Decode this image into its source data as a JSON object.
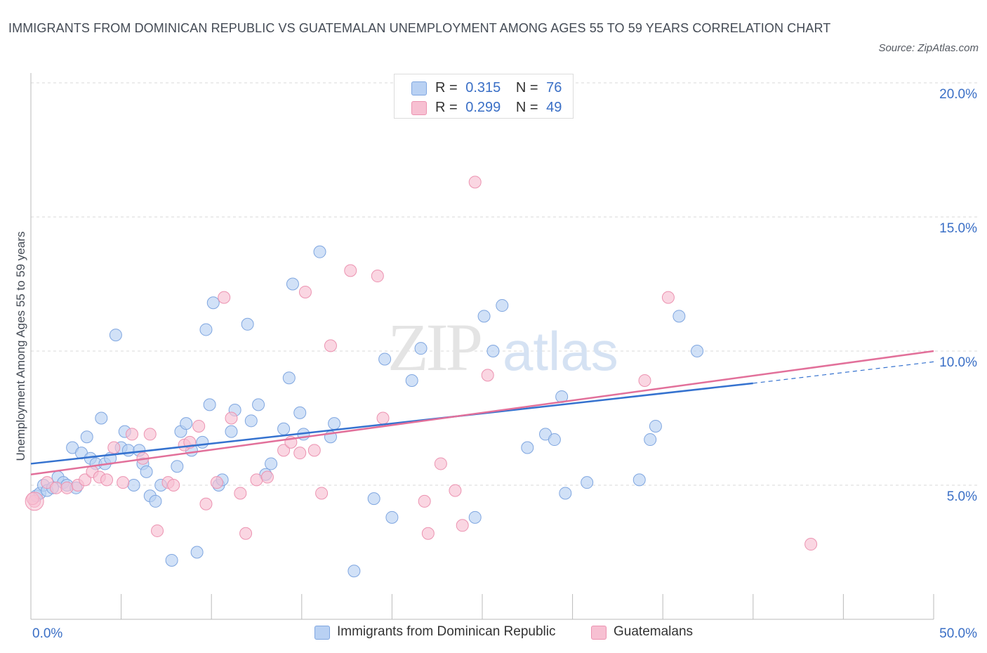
{
  "title": "IMMIGRANTS FROM DOMINICAN REPUBLIC VS GUATEMALAN UNEMPLOYMENT AMONG AGES 55 TO 59 YEARS CORRELATION CHART",
  "source": "Source: ZipAtlas.com",
  "watermark": {
    "zip": "ZIP",
    "atlas": "atlas"
  },
  "legend": {
    "rows": [
      {
        "r_label": "R =",
        "r_value": "0.315",
        "n_label": "N =",
        "n_value": "76"
      },
      {
        "r_label": "R =",
        "r_value": "0.299",
        "n_label": "N =",
        "n_value": "49"
      }
    ]
  },
  "bottom_legend": {
    "series1": "Immigrants from Dominican Republic",
    "series2": "Guatemalans"
  },
  "colors": {
    "blue_fill": "#b9d1f3",
    "blue_stroke": "#7fa6e0",
    "blue_line": "#3572cf",
    "pink_fill": "#f7c0d2",
    "pink_stroke": "#ec93b1",
    "pink_line": "#e2709a",
    "axis_text": "#3a6fc6",
    "grid": "#d9d9d9"
  },
  "chart_data": {
    "type": "scatter",
    "title": "IMMIGRANTS FROM DOMINICAN REPUBLIC VS GUATEMALAN UNEMPLOYMENT AMONG AGES 55 TO 59 YEARS CORRELATION CHART",
    "xlabel": "",
    "ylabel": "Unemployment Among Ages 55 to 59 years",
    "xlim": [
      0,
      50
    ],
    "ylim": [
      0,
      20
    ],
    "x_tick_labels": [
      "0.0%",
      "50.0%"
    ],
    "y_tick_labels": [
      "5.0%",
      "10.0%",
      "15.0%",
      "20.0%"
    ],
    "y_tick_values": [
      5,
      10,
      15,
      20
    ],
    "x_tick_values": [
      0,
      5,
      10,
      15,
      20,
      25,
      30,
      35,
      40,
      45,
      50
    ],
    "series": [
      {
        "name": "Immigrants from Dominican Republic",
        "R": 0.315,
        "N": 76,
        "trend": {
          "x0": 0,
          "y0": 5.8,
          "x1": 40,
          "y1": 8.8,
          "dashed_to": 50,
          "dashed_y": 9.6
        },
        "points": [
          [
            0.3,
            4.6
          ],
          [
            0.5,
            4.7
          ],
          [
            0.7,
            5.0
          ],
          [
            0.9,
            4.8
          ],
          [
            1.2,
            4.9
          ],
          [
            1.5,
            5.3
          ],
          [
            1.8,
            5.1
          ],
          [
            2.0,
            5.0
          ],
          [
            2.5,
            4.9
          ],
          [
            2.3,
            6.4
          ],
          [
            2.8,
            6.2
          ],
          [
            3.1,
            6.8
          ],
          [
            3.3,
            6.0
          ],
          [
            3.6,
            5.8
          ],
          [
            3.9,
            7.5
          ],
          [
            4.1,
            5.8
          ],
          [
            4.4,
            6.0
          ],
          [
            4.7,
            10.6
          ],
          [
            5.0,
            6.4
          ],
          [
            5.2,
            7.0
          ],
          [
            5.4,
            6.3
          ],
          [
            5.7,
            5.0
          ],
          [
            6.0,
            6.3
          ],
          [
            6.2,
            5.8
          ],
          [
            6.4,
            5.5
          ],
          [
            6.6,
            4.6
          ],
          [
            6.9,
            4.4
          ],
          [
            7.2,
            5.0
          ],
          [
            7.8,
            2.2
          ],
          [
            8.1,
            5.7
          ],
          [
            8.3,
            7.0
          ],
          [
            8.6,
            7.3
          ],
          [
            8.9,
            6.3
          ],
          [
            9.2,
            2.5
          ],
          [
            9.5,
            6.6
          ],
          [
            9.7,
            10.8
          ],
          [
            9.9,
            8.0
          ],
          [
            10.1,
            11.8
          ],
          [
            10.4,
            5.0
          ],
          [
            10.6,
            5.2
          ],
          [
            11.1,
            7.0
          ],
          [
            11.3,
            7.8
          ],
          [
            12.0,
            11.0
          ],
          [
            12.2,
            7.4
          ],
          [
            12.6,
            8.0
          ],
          [
            13.0,
            5.4
          ],
          [
            13.3,
            5.8
          ],
          [
            14.0,
            7.1
          ],
          [
            14.3,
            9.0
          ],
          [
            14.5,
            12.5
          ],
          [
            14.9,
            7.7
          ],
          [
            15.1,
            6.9
          ],
          [
            16.0,
            13.7
          ],
          [
            16.6,
            6.8
          ],
          [
            16.8,
            7.3
          ],
          [
            17.9,
            1.8
          ],
          [
            19.0,
            4.5
          ],
          [
            19.6,
            9.7
          ],
          [
            20.0,
            3.8
          ],
          [
            21.1,
            8.9
          ],
          [
            21.6,
            10.1
          ],
          [
            24.6,
            3.8
          ],
          [
            25.1,
            11.3
          ],
          [
            25.6,
            10.0
          ],
          [
            26.1,
            11.7
          ],
          [
            27.5,
            6.4
          ],
          [
            28.5,
            6.9
          ],
          [
            29.0,
            6.7
          ],
          [
            29.4,
            8.3
          ],
          [
            29.6,
            4.7
          ],
          [
            30.8,
            5.1
          ],
          [
            33.7,
            5.2
          ],
          [
            34.3,
            6.7
          ],
          [
            34.6,
            7.2
          ],
          [
            35.9,
            11.3
          ],
          [
            36.9,
            10.0
          ]
        ]
      },
      {
        "name": "Guatemalans",
        "R": 0.299,
        "N": 49,
        "trend": {
          "x0": 0,
          "y0": 5.4,
          "x1": 50,
          "y1": 10.0
        },
        "points": [
          [
            0.2,
            4.4
          ],
          [
            0.9,
            5.1
          ],
          [
            1.4,
            4.9
          ],
          [
            2.0,
            4.9
          ],
          [
            2.6,
            5.0
          ],
          [
            3.0,
            5.2
          ],
          [
            3.4,
            5.5
          ],
          [
            3.8,
            5.3
          ],
          [
            4.2,
            5.2
          ],
          [
            4.6,
            6.4
          ],
          [
            5.1,
            5.1
          ],
          [
            5.6,
            6.9
          ],
          [
            6.2,
            6.0
          ],
          [
            6.6,
            6.9
          ],
          [
            7.0,
            3.3
          ],
          [
            7.6,
            5.1
          ],
          [
            7.9,
            5.0
          ],
          [
            8.5,
            6.5
          ],
          [
            8.8,
            6.6
          ],
          [
            9.3,
            7.2
          ],
          [
            9.7,
            4.3
          ],
          [
            10.3,
            5.1
          ],
          [
            10.7,
            12.0
          ],
          [
            11.1,
            7.5
          ],
          [
            11.6,
            4.7
          ],
          [
            11.9,
            3.2
          ],
          [
            12.5,
            5.2
          ],
          [
            13.1,
            5.3
          ],
          [
            14.0,
            6.3
          ],
          [
            14.4,
            6.6
          ],
          [
            14.9,
            6.2
          ],
          [
            15.2,
            12.2
          ],
          [
            15.7,
            6.3
          ],
          [
            16.1,
            4.7
          ],
          [
            16.6,
            10.2
          ],
          [
            17.7,
            13.0
          ],
          [
            19.2,
            12.8
          ],
          [
            19.5,
            7.5
          ],
          [
            21.8,
            4.4
          ],
          [
            22.0,
            3.2
          ],
          [
            22.7,
            5.8
          ],
          [
            23.5,
            4.8
          ],
          [
            23.9,
            3.5
          ],
          [
            24.6,
            16.3
          ],
          [
            25.3,
            9.1
          ],
          [
            34.0,
            8.9
          ],
          [
            35.3,
            12.0
          ],
          [
            43.2,
            2.8
          ],
          [
            0.1,
            4.5
          ]
        ]
      }
    ]
  }
}
